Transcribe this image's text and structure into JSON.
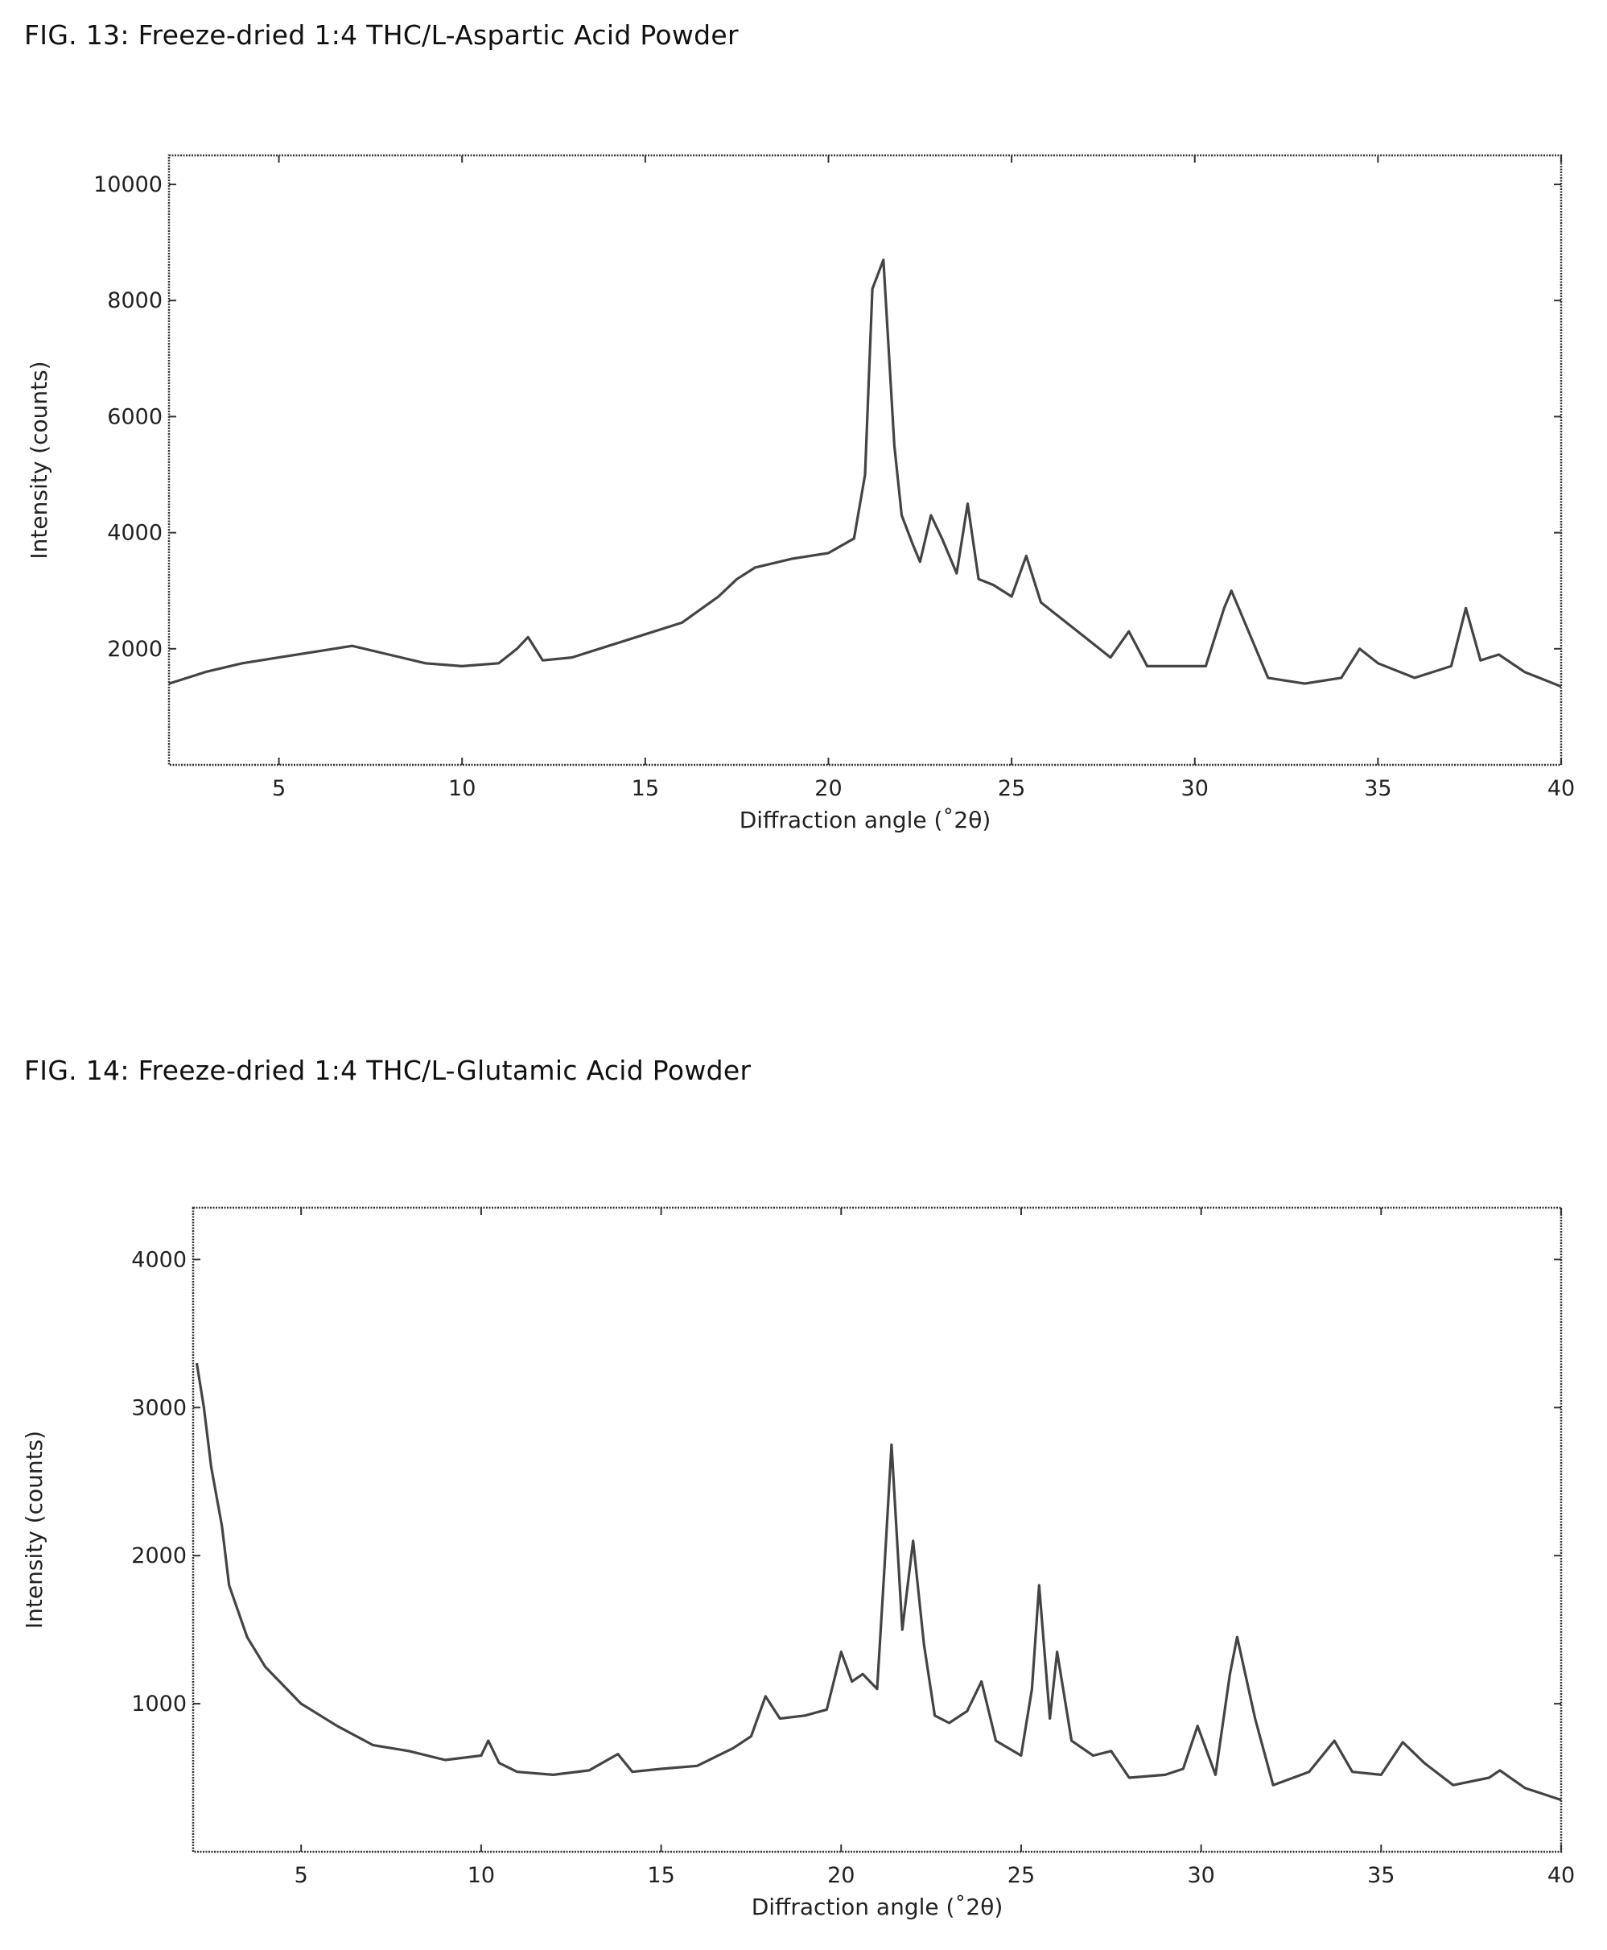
{
  "figures": [
    {
      "caption": "FIG. 13: Freeze-dried 1:4 THC/L-Aspartic Acid Powder"
    },
    {
      "caption": "FIG. 14: Freeze-dried 1:4 THC/L-Glutamic Acid Powder"
    }
  ],
  "chart_data": [
    {
      "type": "line",
      "title": "",
      "xlabel": "Diffraction angle (˚2θ)",
      "ylabel": "Intensity (counts)",
      "xlim": [
        2,
        40
      ],
      "ylim": [
        0,
        10500
      ],
      "xticks": [
        5,
        10,
        15,
        20,
        25,
        30,
        35,
        40
      ],
      "yticks": [
        2000,
        4000,
        6000,
        8000,
        10000
      ],
      "grid": false,
      "line_color": "#444444",
      "series": [
        {
          "x": [
            2,
            3,
            4,
            5,
            6,
            7,
            8,
            9,
            10,
            11,
            11.5,
            11.8,
            12.2,
            13,
            14,
            15,
            16,
            17,
            17.5,
            18,
            19,
            20,
            20.7,
            21,
            21.2,
            21.5,
            21.8,
            22,
            22.3,
            22.5,
            22.8,
            23.1,
            23.5,
            23.8,
            24.1,
            24.5,
            25,
            25.4,
            25.8,
            26.2,
            27,
            27.7,
            28.2,
            28.7,
            29.5,
            30.3,
            30.8,
            31,
            31.4,
            32,
            33,
            34,
            34.5,
            35,
            36,
            37,
            37.4,
            37.8,
            38.3,
            39,
            40
          ],
          "y": [
            1400,
            1600,
            1750,
            1850,
            1950,
            2050,
            1900,
            1750,
            1700,
            1750,
            2000,
            2200,
            1800,
            1850,
            2050,
            2250,
            2450,
            2900,
            3200,
            3400,
            3550,
            3650,
            3900,
            5000,
            8200,
            8700,
            5500,
            4300,
            3800,
            3500,
            4300,
            3900,
            3300,
            4500,
            3200,
            3100,
            2900,
            3600,
            2800,
            2600,
            2200,
            1850,
            2300,
            1700,
            1700,
            1700,
            2700,
            3000,
            2400,
            1500,
            1400,
            1500,
            2000,
            1750,
            1500,
            1700,
            2700,
            1800,
            1900,
            1600,
            1350
          ]
        }
      ]
    },
    {
      "type": "line",
      "title": "",
      "xlabel": "Diffraction angle (˚2θ)",
      "ylabel": "Intensity (counts)",
      "xlim": [
        2,
        40
      ],
      "ylim": [
        0,
        4350
      ],
      "xticks": [
        5,
        10,
        15,
        20,
        25,
        30,
        35,
        40
      ],
      "yticks": [
        1000,
        2000,
        3000,
        4000
      ],
      "grid": false,
      "line_color": "#444444",
      "series": [
        {
          "x": [
            2.1,
            2.3,
            2.5,
            2.8,
            3,
            3.5,
            4,
            5,
            6,
            7,
            8,
            9,
            10,
            10.2,
            10.5,
            11,
            12,
            13,
            13.8,
            14.2,
            15,
            16,
            17,
            17.5,
            17.9,
            18.3,
            19,
            19.6,
            20,
            20.3,
            20.6,
            21,
            21.2,
            21.4,
            21.7,
            22,
            22.3,
            22.6,
            23,
            23.5,
            23.9,
            24.3,
            25,
            25.3,
            25.5,
            25.8,
            26,
            26.4,
            27,
            27.5,
            28,
            29,
            29.5,
            29.9,
            30.4,
            30.8,
            31,
            31.5,
            32,
            33,
            33.7,
            34.2,
            35,
            35.6,
            36.2,
            37,
            38,
            38.3,
            39,
            40
          ],
          "y": [
            3300,
            3000,
            2600,
            2200,
            1800,
            1450,
            1250,
            1000,
            850,
            720,
            680,
            620,
            650,
            750,
            600,
            540,
            520,
            550,
            660,
            540,
            560,
            580,
            700,
            780,
            1050,
            900,
            920,
            960,
            1350,
            1150,
            1200,
            1100,
            1900,
            2750,
            1500,
            2100,
            1400,
            920,
            870,
            950,
            1150,
            750,
            650,
            1100,
            1800,
            900,
            1350,
            750,
            650,
            680,
            500,
            520,
            560,
            850,
            520,
            1200,
            1450,
            900,
            450,
            540,
            750,
            540,
            520,
            740,
            600,
            450,
            500,
            550,
            430,
            350
          ]
        }
      ]
    }
  ]
}
